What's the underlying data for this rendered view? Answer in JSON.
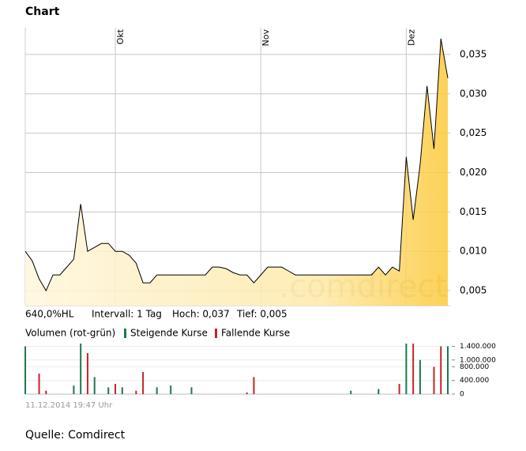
{
  "chart_data": [
    {
      "type": "area",
      "title": "Chart",
      "info": [
        "640,0%HL",
        "Intervall: 1 Tag",
        "Hoch: 0,037",
        "Tief: 0,005"
      ],
      "watermark": ".comdirect",
      "categories": [
        null,
        null,
        null,
        null,
        null,
        null,
        null,
        null,
        null,
        null,
        null,
        null,
        null,
        "Okt",
        null,
        null,
        null,
        null,
        null,
        null,
        null,
        null,
        null,
        null,
        null,
        null,
        null,
        null,
        null,
        null,
        null,
        null,
        null,
        null,
        "Nov",
        null,
        null,
        null,
        null,
        null,
        null,
        null,
        null,
        null,
        null,
        null,
        null,
        null,
        null,
        null,
        null,
        null,
        null,
        null,
        null,
        "Dez",
        null,
        null,
        null,
        null,
        null,
        null
      ],
      "values": [
        0.01,
        0.0088,
        0.0065,
        0.005,
        0.007,
        0.007,
        0.008,
        0.009,
        0.016,
        0.01,
        0.0105,
        0.011,
        0.011,
        0.01,
        0.01,
        0.0095,
        0.0085,
        0.006,
        0.006,
        0.007,
        0.007,
        0.007,
        0.007,
        0.007,
        0.007,
        0.007,
        0.007,
        0.008,
        0.008,
        0.0078,
        0.0073,
        0.007,
        0.007,
        0.006,
        0.007,
        0.008,
        0.008,
        0.008,
        0.0075,
        0.007,
        0.007,
        0.007,
        0.007,
        0.007,
        0.007,
        0.007,
        0.007,
        0.007,
        0.007,
        0.007,
        0.007,
        0.008,
        0.007,
        0.008,
        0.0075,
        0.022,
        0.014,
        0.021,
        0.031,
        0.023,
        0.037,
        0.032
      ],
      "ylim": [
        0.0031,
        0.0384
      ],
      "yticks": [
        {
          "value": 0.005,
          "label": "0,005"
        },
        {
          "value": 0.01,
          "label": "0,010"
        },
        {
          "value": 0.015,
          "label": "0,015"
        },
        {
          "value": 0.02,
          "label": "0,020"
        },
        {
          "value": 0.025,
          "label": "0,025"
        },
        {
          "value": 0.03,
          "label": "0,030"
        },
        {
          "value": 0.035,
          "label": "0,035"
        }
      ],
      "grid": true
    },
    {
      "type": "bar",
      "title": "Volumen (rot-grün)",
      "series": [
        {
          "name": "Steigende Kurse",
          "color": "#1b7a4c",
          "values": [
            1400000,
            null,
            null,
            null,
            null,
            null,
            null,
            250000,
            1480000,
            null,
            500000,
            null,
            200000,
            null,
            200000,
            null,
            null,
            null,
            null,
            200000,
            null,
            250000,
            null,
            null,
            200000,
            null,
            null,
            null,
            null,
            null,
            null,
            null,
            null,
            null,
            null,
            null,
            null,
            null,
            null,
            null,
            null,
            null,
            null,
            null,
            null,
            null,
            null,
            100000,
            null,
            null,
            null,
            150000,
            null,
            null,
            null,
            1480000,
            null,
            1000000,
            null,
            null,
            null,
            1400000
          ]
        },
        {
          "name": "Fallende Kurse",
          "color": "#c3252b",
          "values": [
            null,
            null,
            600000,
            100000,
            null,
            null,
            null,
            null,
            null,
            1200000,
            null,
            null,
            null,
            300000,
            null,
            null,
            100000,
            650000,
            null,
            null,
            null,
            null,
            null,
            null,
            null,
            null,
            null,
            null,
            null,
            null,
            null,
            null,
            50000,
            500000,
            null,
            null,
            null,
            null,
            null,
            null,
            null,
            null,
            null,
            null,
            null,
            null,
            null,
            null,
            null,
            null,
            null,
            null,
            null,
            null,
            300000,
            null,
            1480000,
            null,
            null,
            800000,
            1400000,
            null
          ]
        }
      ],
      "ylim": [
        0,
        1480000
      ],
      "yticks": [
        0,
        {
          "value": 400000,
          "label": "400.000"
        },
        {
          "value": 800000,
          "label": "800.000"
        },
        {
          "value": 1000000,
          "label": "1.000.000"
        },
        {
          "value": 1400000,
          "label": "1.400.000"
        }
      ],
      "grid": true
    }
  ],
  "timestamp": "11.12.2014 19:47 Uhr",
  "source": "Quelle: Comdirect"
}
